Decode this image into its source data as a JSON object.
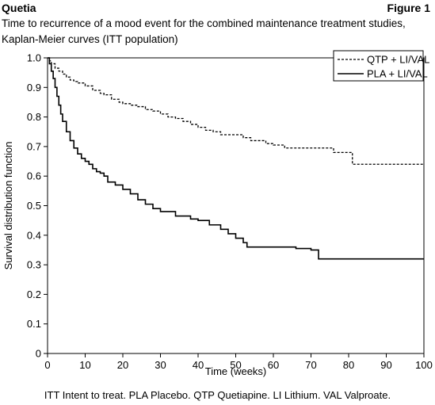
{
  "header": {
    "product": "Quetia",
    "figure_label": "Figure 1"
  },
  "caption": "Time to recurrence of a mood event for the combined maintenance treatment studies, Kaplan-Meier curves (ITT population)",
  "footnote": "ITT Intent to treat. PLA Placebo. QTP Quetiapine. LI Lithium. VAL Valproate.",
  "chart_data": {
    "type": "line",
    "title": "",
    "xlabel": "Time (weeks)",
    "ylabel": "Survival distribution function",
    "xlim": [
      0,
      100
    ],
    "ylim": [
      0,
      1.0
    ],
    "xticks": [
      0,
      10,
      20,
      30,
      40,
      50,
      60,
      70,
      80,
      90,
      100
    ],
    "yticks": [
      0,
      0.1,
      0.2,
      0.3,
      0.4,
      0.5,
      0.6,
      0.7,
      0.8,
      0.9,
      1.0
    ],
    "xtick_labels": [
      "0",
      "10",
      "20",
      "30",
      "40",
      "50",
      "60",
      "70",
      "80",
      "90",
      "100"
    ],
    "ytick_labels": [
      "0",
      "0.1",
      "0.2",
      "0.3",
      "0.4",
      "0.5",
      "0.6",
      "0.7",
      "0.8",
      "0.9",
      "1.0"
    ],
    "grid": false,
    "legend_position": "top-right",
    "series": [
      {
        "name": "QTP + LI/VAL",
        "style": "dashed",
        "color": "#000000",
        "x": [
          0,
          0.5,
          1,
          2,
          3,
          4,
          5,
          6,
          7,
          8,
          10,
          12,
          14,
          15,
          17,
          19,
          20,
          22,
          24,
          26,
          28,
          30,
          32,
          34,
          36,
          38,
          40,
          42,
          44,
          46,
          50,
          52,
          54,
          58,
          60,
          63,
          66,
          70,
          74,
          76,
          78,
          80,
          81,
          90,
          100
        ],
        "y": [
          1.0,
          0.99,
          0.98,
          0.965,
          0.955,
          0.945,
          0.935,
          0.925,
          0.92,
          0.915,
          0.905,
          0.89,
          0.88,
          0.875,
          0.86,
          0.85,
          0.845,
          0.84,
          0.835,
          0.825,
          0.82,
          0.81,
          0.8,
          0.795,
          0.785,
          0.775,
          0.765,
          0.755,
          0.75,
          0.74,
          0.74,
          0.73,
          0.72,
          0.71,
          0.705,
          0.695,
          0.695,
          0.695,
          0.695,
          0.68,
          0.68,
          0.68,
          0.64,
          0.64,
          0.64
        ]
      },
      {
        "name": "PLA + LI/VAL",
        "style": "solid",
        "color": "#000000",
        "x": [
          0,
          0.5,
          1,
          1.5,
          2,
          2.5,
          3,
          3.5,
          4,
          5,
          6,
          7,
          8,
          9,
          10,
          11,
          12,
          13,
          14,
          15,
          16,
          18,
          20,
          22,
          24,
          26,
          28,
          30,
          34,
          38,
          40,
          43,
          46,
          48,
          50,
          52,
          53,
          60,
          66,
          70,
          72,
          80,
          100
        ],
        "y": [
          1.0,
          0.98,
          0.955,
          0.93,
          0.9,
          0.87,
          0.84,
          0.81,
          0.785,
          0.75,
          0.72,
          0.695,
          0.675,
          0.66,
          0.65,
          0.64,
          0.625,
          0.615,
          0.61,
          0.6,
          0.58,
          0.57,
          0.555,
          0.54,
          0.52,
          0.505,
          0.49,
          0.48,
          0.465,
          0.455,
          0.45,
          0.435,
          0.42,
          0.405,
          0.39,
          0.375,
          0.36,
          0.36,
          0.355,
          0.35,
          0.32,
          0.32,
          0.32
        ]
      }
    ]
  }
}
